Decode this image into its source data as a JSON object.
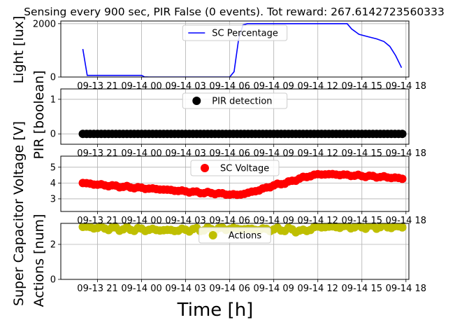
{
  "title": "Sensing every 900 sec, PIR False (0 events). Tot reward: 267.6142723560333",
  "xlabel": "Time [h]",
  "x_tick_labels": [
    "09-13 21",
    "09-14 00",
    "09-14 03",
    "09-14 06",
    "09-14 09",
    "09-14 12",
    "09-14 15",
    "09-14 18"
  ],
  "colors": {
    "light": "#0000ff",
    "pir": "#000000",
    "voltage": "#ff0000",
    "actions": "#bfbf00",
    "grid": "#b0b0b0"
  },
  "chart_data": [
    {
      "type": "line",
      "ylabel": "Light [lux]",
      "ylim": [
        0,
        2100
      ],
      "yticks": [
        0,
        2000
      ],
      "xlim": [
        -1.5,
        22.2
      ],
      "grid": true,
      "legend_position": "top-center",
      "series": [
        {
          "name": "SC Percentage",
          "x": [
            0,
            0.3,
            1,
            2,
            3,
            4,
            4.2,
            4.5,
            5,
            6,
            7,
            8,
            9,
            10,
            10.3,
            10.6,
            10.9,
            11.2,
            11.5,
            12,
            13,
            14,
            15,
            16,
            17,
            18,
            18.3,
            18.8,
            19.5,
            20,
            20.5,
            20.9,
            21.3,
            21.7
          ],
          "y": [
            1050,
            60,
            60,
            60,
            60,
            60,
            5,
            0,
            0,
            0,
            0,
            0,
            0,
            0,
            200,
            1400,
            1950,
            2000,
            2000,
            2000,
            2000,
            2000,
            2000,
            2000,
            2000,
            2000,
            1800,
            1600,
            1500,
            1430,
            1330,
            1150,
            800,
            350
          ]
        }
      ]
    },
    {
      "type": "scatter",
      "ylabel": "PIR [boolean]",
      "ylim": [
        -0.3,
        1.3
      ],
      "yticks": [
        0,
        1
      ],
      "xlim": [
        -1.5,
        22.2
      ],
      "grid": true,
      "legend_position": "top-center",
      "series": [
        {
          "name": "PIR detection",
          "x_start": 0,
          "x_end": 21.75,
          "x_step": 0.25,
          "y": 0
        }
      ]
    },
    {
      "type": "scatter",
      "ylabel": "Super Capacitor Voltage [V]",
      "ylim": [
        2.2,
        5.7
      ],
      "yticks": [
        3,
        4,
        5
      ],
      "xlim": [
        -1.5,
        22.2
      ],
      "grid": true,
      "legend_position": "top-center",
      "series": [
        {
          "name": "SC Voltage",
          "x_start": 0,
          "x_end": 21.75,
          "x_step": 0.25,
          "curve_x": [
            0,
            1,
            2,
            3,
            4,
            5,
            6,
            7,
            8,
            9,
            10,
            10.5,
            11,
            12,
            13,
            14,
            15,
            16,
            17,
            18,
            19,
            20,
            21,
            21.75
          ],
          "curve_y": [
            4.0,
            3.9,
            3.82,
            3.75,
            3.68,
            3.62,
            3.55,
            3.47,
            3.4,
            3.35,
            3.28,
            3.25,
            3.32,
            3.55,
            3.85,
            4.05,
            4.35,
            4.55,
            4.55,
            4.5,
            4.45,
            4.4,
            4.35,
            4.28
          ]
        }
      ]
    },
    {
      "type": "scatter",
      "ylabel": "Actions [num]",
      "ylim": [
        0,
        3.2
      ],
      "yticks": [
        0,
        2
      ],
      "xlim": [
        -1.5,
        22.2
      ],
      "grid": true,
      "legend_position": "top-center",
      "series": [
        {
          "name": "Actions",
          "x_start": 0,
          "x_end": 21.75,
          "x_step": 0.25,
          "curve_x": [
            0,
            2,
            4,
            6,
            8,
            10,
            12,
            14,
            15,
            16,
            18,
            20,
            21.75
          ],
          "curve_y": [
            3,
            2.9,
            2.85,
            2.8,
            2.85,
            2.9,
            2.85,
            2.85,
            2.75,
            3.0,
            3.0,
            3.0,
            3.0
          ]
        }
      ]
    }
  ]
}
